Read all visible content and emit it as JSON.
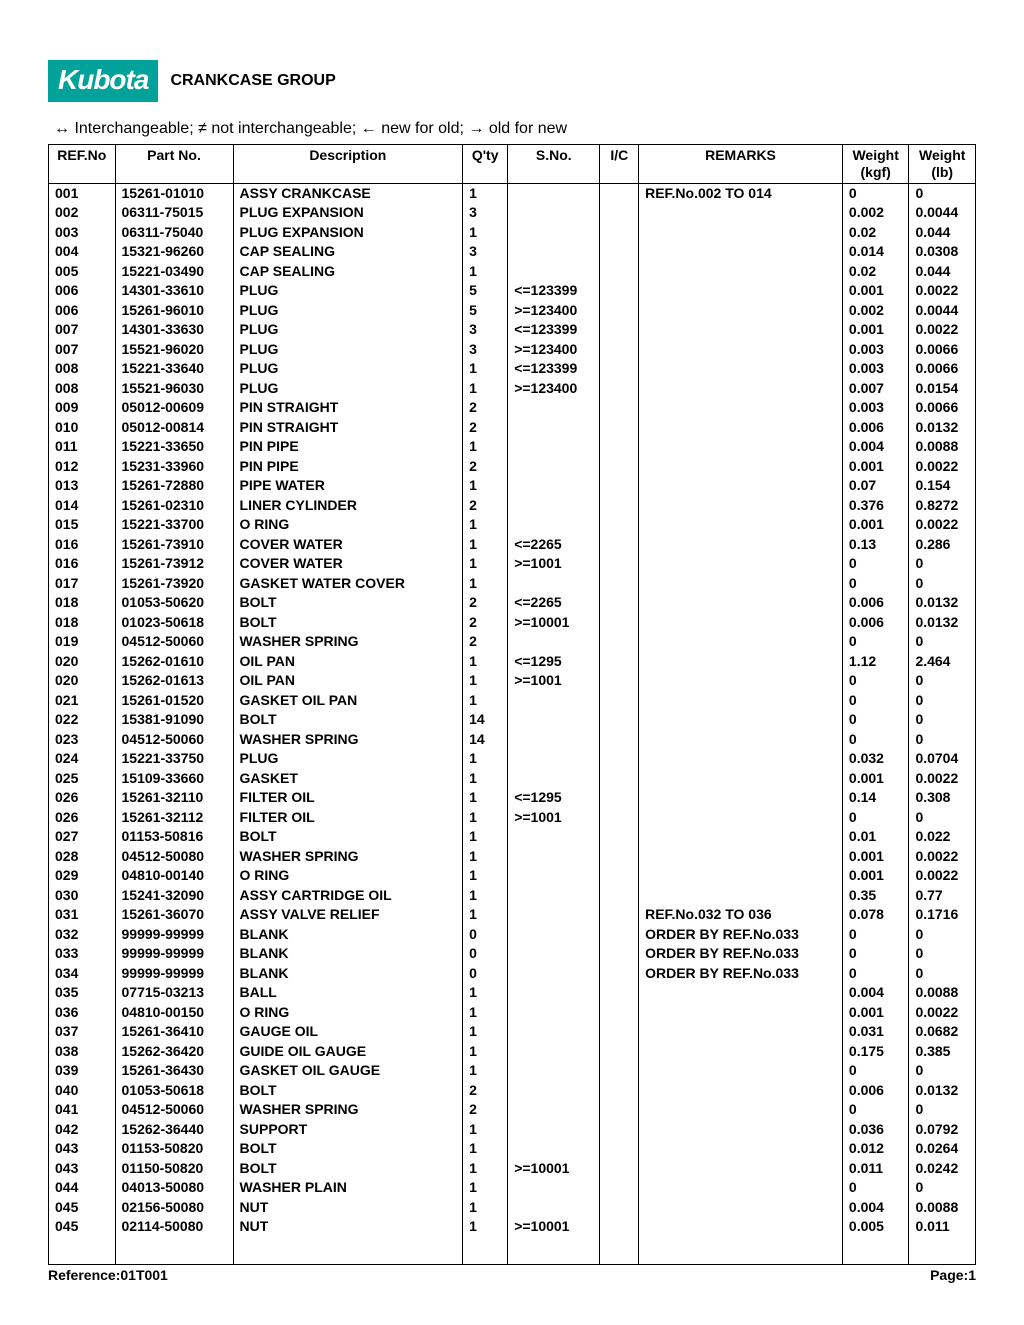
{
  "header": {
    "logo_text": "Kubota",
    "group_title": "CRANKCASE GROUP"
  },
  "legend": "↔ Interchangeable;    ≠ not interchangeable;    ← new for old;    → old for new",
  "columns": [
    "REF.No",
    "Part No.",
    "Description",
    "Q'ty",
    "S.No.",
    "I/C",
    "REMARKS",
    "Weight (kgf)",
    "Weight (lb)"
  ],
  "footer": {
    "reference": "Reference:01T001",
    "page": "Page:1"
  },
  "rows": [
    {
      "ref": "001",
      "part": "15261-01010",
      "desc": "ASSY CRANKCASE",
      "qty": "1",
      "sno": "",
      "ic": "",
      "rem": "REF.No.002 TO 014",
      "wkgf": "0",
      "wlb": "0"
    },
    {
      "ref": "002",
      "part": "06311-75015",
      "desc": "PLUG EXPANSION",
      "qty": "3",
      "sno": "",
      "ic": "",
      "rem": "",
      "wkgf": "0.002",
      "wlb": "0.0044"
    },
    {
      "ref": "003",
      "part": "06311-75040",
      "desc": "PLUG EXPANSION",
      "qty": "1",
      "sno": "",
      "ic": "",
      "rem": "",
      "wkgf": "0.02",
      "wlb": "0.044"
    },
    {
      "ref": "004",
      "part": "15321-96260",
      "desc": "CAP SEALING",
      "qty": "3",
      "sno": "",
      "ic": "",
      "rem": "",
      "wkgf": "0.014",
      "wlb": "0.0308"
    },
    {
      "ref": "005",
      "part": "15221-03490",
      "desc": "CAP SEALING",
      "qty": "1",
      "sno": "",
      "ic": "",
      "rem": "",
      "wkgf": "0.02",
      "wlb": "0.044"
    },
    {
      "ref": "006",
      "part": "14301-33610",
      "desc": "PLUG",
      "qty": "5",
      "sno": "<=123399",
      "ic": "",
      "rem": "",
      "wkgf": "0.001",
      "wlb": "0.0022"
    },
    {
      "ref": "006",
      "part": "15261-96010",
      "desc": "PLUG",
      "qty": "5",
      "sno": ">=123400",
      "ic": "",
      "rem": "",
      "wkgf": "0.002",
      "wlb": "0.0044"
    },
    {
      "ref": "007",
      "part": "14301-33630",
      "desc": "PLUG",
      "qty": "3",
      "sno": "<=123399",
      "ic": "",
      "rem": "",
      "wkgf": "0.001",
      "wlb": "0.0022"
    },
    {
      "ref": "007",
      "part": "15521-96020",
      "desc": "PLUG",
      "qty": "3",
      "sno": ">=123400",
      "ic": "",
      "rem": "",
      "wkgf": "0.003",
      "wlb": "0.0066"
    },
    {
      "ref": "008",
      "part": "15221-33640",
      "desc": "PLUG",
      "qty": "1",
      "sno": "<=123399",
      "ic": "",
      "rem": "",
      "wkgf": "0.003",
      "wlb": "0.0066"
    },
    {
      "ref": "008",
      "part": "15521-96030",
      "desc": "PLUG",
      "qty": "1",
      "sno": ">=123400",
      "ic": "",
      "rem": "",
      "wkgf": "0.007",
      "wlb": "0.0154"
    },
    {
      "ref": "009",
      "part": "05012-00609",
      "desc": "PIN STRAIGHT",
      "qty": "2",
      "sno": "",
      "ic": "",
      "rem": "",
      "wkgf": "0.003",
      "wlb": "0.0066"
    },
    {
      "ref": "010",
      "part": "05012-00814",
      "desc": "PIN STRAIGHT",
      "qty": "2",
      "sno": "",
      "ic": "",
      "rem": "",
      "wkgf": "0.006",
      "wlb": "0.0132"
    },
    {
      "ref": "011",
      "part": "15221-33650",
      "desc": "PIN PIPE",
      "qty": "1",
      "sno": "",
      "ic": "",
      "rem": "",
      "wkgf": "0.004",
      "wlb": "0.0088"
    },
    {
      "ref": "012",
      "part": "15231-33960",
      "desc": "PIN PIPE",
      "qty": "2",
      "sno": "",
      "ic": "",
      "rem": "",
      "wkgf": "0.001",
      "wlb": "0.0022"
    },
    {
      "ref": "013",
      "part": "15261-72880",
      "desc": "PIPE WATER",
      "qty": "1",
      "sno": "",
      "ic": "",
      "rem": "",
      "wkgf": "0.07",
      "wlb": "0.154"
    },
    {
      "ref": "014",
      "part": "15261-02310",
      "desc": "LINER CYLINDER",
      "qty": "2",
      "sno": "",
      "ic": "",
      "rem": "",
      "wkgf": "0.376",
      "wlb": "0.8272"
    },
    {
      "ref": "015",
      "part": "15221-33700",
      "desc": "O RING",
      "qty": "1",
      "sno": "",
      "ic": "",
      "rem": "",
      "wkgf": "0.001",
      "wlb": "0.0022"
    },
    {
      "ref": "016",
      "part": "15261-73910",
      "desc": "COVER WATER",
      "qty": "1",
      "sno": "<=2265",
      "ic": "",
      "rem": "",
      "wkgf": "0.13",
      "wlb": "0.286"
    },
    {
      "ref": "016",
      "part": "15261-73912",
      "desc": "COVER WATER",
      "qty": "1",
      "sno": ">=1001",
      "ic": "",
      "rem": "",
      "wkgf": "0",
      "wlb": "0"
    },
    {
      "ref": "017",
      "part": "15261-73920",
      "desc": "GASKET WATER COVER",
      "qty": "1",
      "sno": "",
      "ic": "",
      "rem": "",
      "wkgf": "0",
      "wlb": "0"
    },
    {
      "ref": "018",
      "part": "01053-50620",
      "desc": "BOLT",
      "qty": "2",
      "sno": "<=2265",
      "ic": "",
      "rem": "",
      "wkgf": "0.006",
      "wlb": "0.0132"
    },
    {
      "ref": "018",
      "part": "01023-50618",
      "desc": "BOLT",
      "qty": "2",
      "sno": ">=10001",
      "ic": "",
      "rem": "",
      "wkgf": "0.006",
      "wlb": "0.0132"
    },
    {
      "ref": "019",
      "part": "04512-50060",
      "desc": "WASHER SPRING",
      "qty": "2",
      "sno": "",
      "ic": "",
      "rem": "",
      "wkgf": "0",
      "wlb": "0"
    },
    {
      "ref": "020",
      "part": "15262-01610",
      "desc": "OIL PAN",
      "qty": "1",
      "sno": "<=1295",
      "ic": "",
      "rem": "",
      "wkgf": "1.12",
      "wlb": "2.464"
    },
    {
      "ref": "020",
      "part": "15262-01613",
      "desc": "OIL PAN",
      "qty": "1",
      "sno": ">=1001",
      "ic": "",
      "rem": "",
      "wkgf": "0",
      "wlb": "0"
    },
    {
      "ref": "021",
      "part": "15261-01520",
      "desc": "GASKET OIL PAN",
      "qty": "1",
      "sno": "",
      "ic": "",
      "rem": "",
      "wkgf": "0",
      "wlb": "0"
    },
    {
      "ref": "022",
      "part": "15381-91090",
      "desc": "BOLT",
      "qty": "14",
      "sno": "",
      "ic": "",
      "rem": "",
      "wkgf": "0",
      "wlb": "0"
    },
    {
      "ref": "023",
      "part": "04512-50060",
      "desc": "WASHER SPRING",
      "qty": "14",
      "sno": "",
      "ic": "",
      "rem": "",
      "wkgf": "0",
      "wlb": "0"
    },
    {
      "ref": "024",
      "part": "15221-33750",
      "desc": "PLUG",
      "qty": "1",
      "sno": "",
      "ic": "",
      "rem": "",
      "wkgf": "0.032",
      "wlb": "0.0704"
    },
    {
      "ref": "025",
      "part": "15109-33660",
      "desc": "GASKET",
      "qty": "1",
      "sno": "",
      "ic": "",
      "rem": "",
      "wkgf": "0.001",
      "wlb": "0.0022"
    },
    {
      "ref": "026",
      "part": "15261-32110",
      "desc": "FILTER OIL",
      "qty": "1",
      "sno": "<=1295",
      "ic": "",
      "rem": "",
      "wkgf": "0.14",
      "wlb": "0.308"
    },
    {
      "ref": "026",
      "part": "15261-32112",
      "desc": "FILTER OIL",
      "qty": "1",
      "sno": ">=1001",
      "ic": "",
      "rem": "",
      "wkgf": "0",
      "wlb": "0"
    },
    {
      "ref": "027",
      "part": "01153-50816",
      "desc": "BOLT",
      "qty": "1",
      "sno": "",
      "ic": "",
      "rem": "",
      "wkgf": "0.01",
      "wlb": "0.022"
    },
    {
      "ref": "028",
      "part": "04512-50080",
      "desc": "WASHER SPRING",
      "qty": "1",
      "sno": "",
      "ic": "",
      "rem": "",
      "wkgf": "0.001",
      "wlb": "0.0022"
    },
    {
      "ref": "029",
      "part": "04810-00140",
      "desc": "O RING",
      "qty": "1",
      "sno": "",
      "ic": "",
      "rem": "",
      "wkgf": "0.001",
      "wlb": "0.0022"
    },
    {
      "ref": "030",
      "part": "15241-32090",
      "desc": "ASSY CARTRIDGE OIL",
      "qty": "1",
      "sno": "",
      "ic": "",
      "rem": "",
      "wkgf": "0.35",
      "wlb": "0.77"
    },
    {
      "ref": "031",
      "part": "15261-36070",
      "desc": "ASSY VALVE RELIEF",
      "qty": "1",
      "sno": "",
      "ic": "",
      "rem": "REF.No.032 TO 036",
      "wkgf": "0.078",
      "wlb": "0.1716"
    },
    {
      "ref": "032",
      "part": "99999-99999",
      "desc": "BLANK",
      "qty": "0",
      "sno": "",
      "ic": "",
      "rem": "ORDER BY REF.No.033",
      "wkgf": "0",
      "wlb": "0"
    },
    {
      "ref": "033",
      "part": "99999-99999",
      "desc": "BLANK",
      "qty": "0",
      "sno": "",
      "ic": "",
      "rem": "ORDER BY REF.No.033",
      "wkgf": "0",
      "wlb": "0"
    },
    {
      "ref": "034",
      "part": "99999-99999",
      "desc": "BLANK",
      "qty": "0",
      "sno": "",
      "ic": "",
      "rem": "ORDER BY REF.No.033",
      "wkgf": "0",
      "wlb": "0"
    },
    {
      "ref": "035",
      "part": "07715-03213",
      "desc": "BALL",
      "qty": "1",
      "sno": "",
      "ic": "",
      "rem": "",
      "wkgf": "0.004",
      "wlb": "0.0088"
    },
    {
      "ref": "036",
      "part": "04810-00150",
      "desc": "O RING",
      "qty": "1",
      "sno": "",
      "ic": "",
      "rem": "",
      "wkgf": "0.001",
      "wlb": "0.0022"
    },
    {
      "ref": "037",
      "part": "15261-36410",
      "desc": "GAUGE OIL",
      "qty": "1",
      "sno": "",
      "ic": "",
      "rem": "",
      "wkgf": "0.031",
      "wlb": "0.0682"
    },
    {
      "ref": "038",
      "part": "15262-36420",
      "desc": "GUIDE OIL GAUGE",
      "qty": "1",
      "sno": "",
      "ic": "",
      "rem": "",
      "wkgf": "0.175",
      "wlb": "0.385"
    },
    {
      "ref": "039",
      "part": "15261-36430",
      "desc": "GASKET OIL GAUGE",
      "qty": "1",
      "sno": "",
      "ic": "",
      "rem": "",
      "wkgf": "0",
      "wlb": "0"
    },
    {
      "ref": "040",
      "part": "01053-50618",
      "desc": "BOLT",
      "qty": "2",
      "sno": "",
      "ic": "",
      "rem": "",
      "wkgf": "0.006",
      "wlb": "0.0132"
    },
    {
      "ref": "041",
      "part": "04512-50060",
      "desc": "WASHER SPRING",
      "qty": "2",
      "sno": "",
      "ic": "",
      "rem": "",
      "wkgf": "0",
      "wlb": "0"
    },
    {
      "ref": "042",
      "part": "15262-36440",
      "desc": "SUPPORT",
      "qty": "1",
      "sno": "",
      "ic": "",
      "rem": "",
      "wkgf": "0.036",
      "wlb": "0.0792"
    },
    {
      "ref": "043",
      "part": "01153-50820",
      "desc": "BOLT",
      "qty": "1",
      "sno": "",
      "ic": "",
      "rem": "",
      "wkgf": "0.012",
      "wlb": "0.0264"
    },
    {
      "ref": "043",
      "part": "01150-50820",
      "desc": "BOLT",
      "qty": "1",
      "sno": ">=10001",
      "ic": "",
      "rem": "",
      "wkgf": "0.011",
      "wlb": "0.0242"
    },
    {
      "ref": "044",
      "part": "04013-50080",
      "desc": "WASHER PLAIN",
      "qty": "1",
      "sno": "",
      "ic": "",
      "rem": "",
      "wkgf": "0",
      "wlb": "0"
    },
    {
      "ref": "045",
      "part": "02156-50080",
      "desc": "NUT",
      "qty": "1",
      "sno": "",
      "ic": "",
      "rem": "",
      "wkgf": "0.004",
      "wlb": "0.0088"
    },
    {
      "ref": "045",
      "part": "02114-50080",
      "desc": "NUT",
      "qty": "1",
      "sno": ">=10001",
      "ic": "",
      "rem": "",
      "wkgf": "0.005",
      "wlb": "0.011"
    }
  ]
}
